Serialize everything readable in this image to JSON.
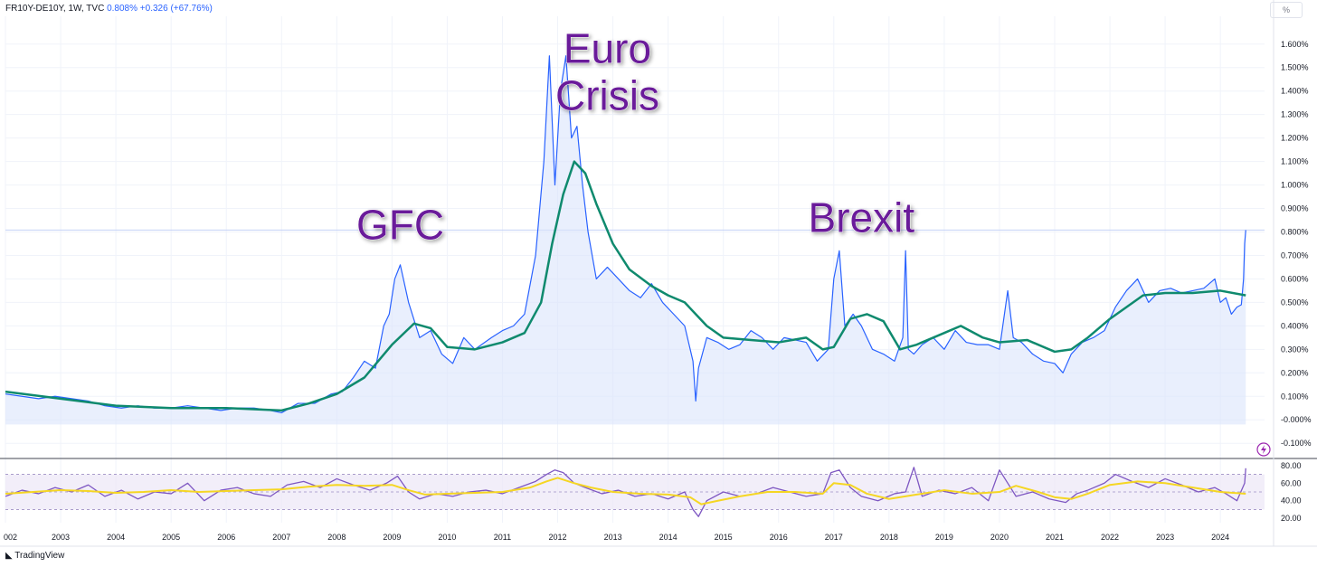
{
  "header": {
    "symbol": "FR10Y-DE10Y, 1W, TVC",
    "last": "0.808%",
    "change": "+0.326 (+67.76%)"
  },
  "scale_mode": "%",
  "brand": "TradingView",
  "colors": {
    "price_line": "#2962ff",
    "price_fill": "#dbe4fb",
    "ma_line": "#0f8a6e",
    "rsi_line": "#7e57c2",
    "rsi_ma_line": "#f5d623",
    "annotation": "#6a1b9a",
    "lightning_icon": "#9c27b0"
  },
  "chart_data": [
    {
      "type": "line",
      "title": "",
      "series": [
        {
          "name": "",
          "x": [
            2002.0,
            2002.3,
            2002.6,
            2002.9,
            2003.2,
            2003.5,
            2003.8,
            2004.1,
            2004.4,
            2004.7,
            2005.0,
            2005.3,
            2005.6,
            2005.9,
            2006.2,
            2006.5,
            2006.8,
            2007.0,
            2007.3,
            2007.6,
            2007.9,
            2008.1,
            2008.3,
            2008.5,
            2008.7,
            2008.85,
            2008.95,
            2009.05,
            2009.15,
            2009.3,
            2009.5,
            2009.7,
            2009.9,
            2010.1,
            2010.3,
            2010.5,
            2010.8,
            2011.0,
            2011.2,
            2011.4,
            2011.6,
            2011.75,
            2011.85,
            2011.95,
            2012.05,
            2012.15,
            2012.25,
            2012.35,
            2012.45,
            2012.55,
            2012.7,
            2012.9,
            2013.1,
            2013.3,
            2013.5,
            2013.7,
            2013.9,
            2014.1,
            2014.3,
            2014.45,
            2014.5,
            2014.55,
            2014.7,
            2014.9,
            2015.1,
            2015.3,
            2015.5,
            2015.7,
            2015.9,
            2016.1,
            2016.3,
            2016.5,
            2016.7,
            2016.9,
            2017.0,
            2017.1,
            2017.2,
            2017.35,
            2017.5,
            2017.7,
            2017.9,
            2018.1,
            2018.25,
            2018.3,
            2018.35,
            2018.45,
            2018.6,
            2018.8,
            2019.0,
            2019.2,
            2019.4,
            2019.6,
            2019.8,
            2020.0,
            2020.15,
            2020.25,
            2020.4,
            2020.6,
            2020.8,
            2021.0,
            2021.15,
            2021.3,
            2021.5,
            2021.7,
            2021.9,
            2022.1,
            2022.3,
            2022.5,
            2022.7,
            2022.9,
            2023.1,
            2023.3,
            2023.5,
            2023.7,
            2023.9,
            2024.0,
            2024.1,
            2024.2,
            2024.3,
            2024.38,
            2024.42,
            2024.44,
            2024.46
          ],
          "values": [
            0.11,
            0.1,
            0.09,
            0.1,
            0.09,
            0.08,
            0.06,
            0.05,
            0.06,
            0.05,
            0.05,
            0.06,
            0.05,
            0.04,
            0.05,
            0.05,
            0.04,
            0.03,
            0.07,
            0.07,
            0.11,
            0.12,
            0.18,
            0.25,
            0.22,
            0.4,
            0.45,
            0.6,
            0.66,
            0.5,
            0.35,
            0.38,
            0.28,
            0.24,
            0.35,
            0.3,
            0.35,
            0.38,
            0.4,
            0.45,
            0.7,
            1.1,
            1.55,
            1.0,
            1.4,
            1.55,
            1.2,
            1.25,
            1.0,
            0.8,
            0.6,
            0.65,
            0.6,
            0.55,
            0.52,
            0.58,
            0.5,
            0.45,
            0.4,
            0.25,
            0.08,
            0.22,
            0.35,
            0.33,
            0.3,
            0.32,
            0.38,
            0.35,
            0.3,
            0.35,
            0.34,
            0.33,
            0.25,
            0.3,
            0.6,
            0.72,
            0.4,
            0.45,
            0.4,
            0.3,
            0.28,
            0.25,
            0.35,
            0.72,
            0.3,
            0.28,
            0.32,
            0.35,
            0.3,
            0.38,
            0.33,
            0.32,
            0.32,
            0.3,
            0.55,
            0.35,
            0.33,
            0.28,
            0.25,
            0.24,
            0.2,
            0.28,
            0.33,
            0.35,
            0.38,
            0.48,
            0.55,
            0.6,
            0.5,
            0.55,
            0.56,
            0.54,
            0.55,
            0.56,
            0.6,
            0.5,
            0.52,
            0.45,
            0.48,
            0.49,
            0.6,
            0.75,
            0.808
          ]
        },
        {
          "name": "",
          "x": [
            2002.0,
            2003.0,
            2004.0,
            2005.0,
            2006.0,
            2007.0,
            2007.5,
            2008.0,
            2008.5,
            2009.0,
            2009.4,
            2009.7,
            2010.0,
            2010.5,
            2011.0,
            2011.4,
            2011.7,
            2011.9,
            2012.1,
            2012.3,
            2012.5,
            2012.7,
            2013.0,
            2013.3,
            2013.7,
            2014.0,
            2014.3,
            2014.7,
            2015.0,
            2015.5,
            2016.0,
            2016.5,
            2016.8,
            2017.0,
            2017.3,
            2017.6,
            2017.9,
            2018.2,
            2018.5,
            2019.0,
            2019.3,
            2019.7,
            2020.0,
            2020.5,
            2021.0,
            2021.3,
            2021.6,
            2022.0,
            2022.3,
            2022.6,
            2023.0,
            2023.5,
            2024.0,
            2024.46
          ],
          "values": [
            0.12,
            0.09,
            0.06,
            0.05,
            0.05,
            0.04,
            0.07,
            0.11,
            0.18,
            0.32,
            0.41,
            0.39,
            0.31,
            0.3,
            0.33,
            0.37,
            0.5,
            0.75,
            0.96,
            1.1,
            1.05,
            0.92,
            0.75,
            0.64,
            0.57,
            0.53,
            0.5,
            0.4,
            0.35,
            0.34,
            0.33,
            0.35,
            0.3,
            0.31,
            0.43,
            0.45,
            0.42,
            0.3,
            0.32,
            0.37,
            0.4,
            0.35,
            0.33,
            0.34,
            0.29,
            0.3,
            0.35,
            0.43,
            0.48,
            0.53,
            0.54,
            0.54,
            0.55,
            0.53
          ]
        }
      ],
      "xlim": [
        2002.0,
        2024.8
      ],
      "ylim": [
        -0.13,
        1.68
      ],
      "y_ticks": [
        "1.600%",
        "1.500%",
        "1.400%",
        "1.300%",
        "1.200%",
        "1.100%",
        "1.000%",
        "0.900%",
        "0.800%",
        "0.700%",
        "0.600%",
        "0.500%",
        "0.400%",
        "0.300%",
        "0.200%",
        "0.100%",
        "-0.000%",
        "-0.100%"
      ],
      "annotations": [
        {
          "text": "GFC",
          "x": 2009.15,
          "y": 0.77
        },
        {
          "text": "Euro",
          "x": 2012.9,
          "y": 1.52
        },
        {
          "text": "Crisis",
          "x": 2012.9,
          "y": 1.32
        },
        {
          "text": "Brexit",
          "x": 2017.5,
          "y": 0.8
        }
      ],
      "current_value": 0.808,
      "grid": true
    },
    {
      "type": "line",
      "title": "",
      "series": [
        {
          "name": "",
          "x": [
            2002.0,
            2002.3,
            2002.6,
            2002.9,
            2003.2,
            2003.5,
            2003.8,
            2004.1,
            2004.4,
            2004.7,
            2005.0,
            2005.3,
            2005.6,
            2005.9,
            2006.2,
            2006.5,
            2006.8,
            2007.1,
            2007.4,
            2007.7,
            2008.0,
            2008.3,
            2008.6,
            2008.9,
            2009.1,
            2009.3,
            2009.5,
            2009.8,
            2010.1,
            2010.4,
            2010.7,
            2011.0,
            2011.3,
            2011.6,
            2011.8,
            2011.95,
            2012.1,
            2012.3,
            2012.5,
            2012.8,
            2013.1,
            2013.4,
            2013.7,
            2014.0,
            2014.3,
            2014.45,
            2014.55,
            2014.7,
            2015.0,
            2015.3,
            2015.6,
            2015.9,
            2016.2,
            2016.5,
            2016.8,
            2016.95,
            2017.1,
            2017.3,
            2017.5,
            2017.8,
            2018.1,
            2018.3,
            2018.45,
            2018.6,
            2018.9,
            2019.2,
            2019.5,
            2019.8,
            2020.0,
            2020.15,
            2020.3,
            2020.6,
            2020.9,
            2021.2,
            2021.4,
            2021.6,
            2021.9,
            2022.1,
            2022.4,
            2022.7,
            2023.0,
            2023.3,
            2023.6,
            2023.9,
            2024.1,
            2024.3,
            2024.44,
            2024.46
          ],
          "values": [
            45,
            52,
            48,
            55,
            50,
            58,
            45,
            52,
            42,
            50,
            48,
            60,
            40,
            52,
            55,
            48,
            45,
            58,
            62,
            55,
            65,
            58,
            52,
            60,
            68,
            50,
            42,
            48,
            45,
            50,
            52,
            48,
            55,
            62,
            70,
            75,
            72,
            60,
            55,
            48,
            52,
            45,
            48,
            42,
            50,
            30,
            22,
            40,
            50,
            45,
            48,
            55,
            50,
            45,
            48,
            72,
            75,
            55,
            45,
            40,
            48,
            50,
            78,
            45,
            52,
            48,
            55,
            40,
            75,
            60,
            45,
            50,
            42,
            38,
            48,
            52,
            60,
            70,
            62,
            55,
            65,
            58,
            50,
            55,
            48,
            40,
            60,
            77
          ]
        },
        {
          "name": "",
          "x": [
            2002.0,
            2002.5,
            2003.0,
            2003.5,
            2004.0,
            2004.5,
            2005.0,
            2005.5,
            2006.0,
            2006.5,
            2007.0,
            2007.5,
            2008.0,
            2008.5,
            2009.0,
            2009.3,
            2009.6,
            2010.0,
            2010.5,
            2011.0,
            2011.5,
            2011.8,
            2012.0,
            2012.3,
            2012.6,
            2013.0,
            2013.5,
            2014.0,
            2014.4,
            2014.6,
            2014.9,
            2015.3,
            2015.8,
            2016.3,
            2016.8,
            2017.0,
            2017.3,
            2017.6,
            2018.0,
            2018.5,
            2019.0,
            2019.5,
            2020.0,
            2020.3,
            2020.7,
            2021.0,
            2021.3,
            2021.6,
            2022.0,
            2022.5,
            2023.0,
            2023.5,
            2024.0,
            2024.46
          ],
          "values": [
            48,
            50,
            52,
            51,
            49,
            50,
            52,
            50,
            51,
            52,
            53,
            56,
            58,
            57,
            58,
            52,
            47,
            48,
            49,
            50,
            55,
            62,
            66,
            60,
            55,
            50,
            48,
            47,
            44,
            36,
            40,
            45,
            50,
            50,
            48,
            60,
            58,
            48,
            42,
            47,
            52,
            48,
            50,
            57,
            50,
            44,
            42,
            48,
            58,
            62,
            60,
            55,
            50,
            48
          ]
        }
      ],
      "xlim": [
        2002.0,
        2024.8
      ],
      "ylim": [
        15,
        85
      ],
      "y_ticks": [
        "80.00",
        "60.00",
        "40.00",
        "20.00"
      ],
      "band": [
        30,
        70
      ]
    }
  ],
  "x_axis_labels": [
    "002",
    "2003",
    "2004",
    "2005",
    "2006",
    "2007",
    "2008",
    "2009",
    "2010",
    "2011",
    "2012",
    "2013",
    "2014",
    "2015",
    "2016",
    "2017",
    "2018",
    "2019",
    "2020",
    "2021",
    "2022",
    "2023",
    "2024"
  ]
}
